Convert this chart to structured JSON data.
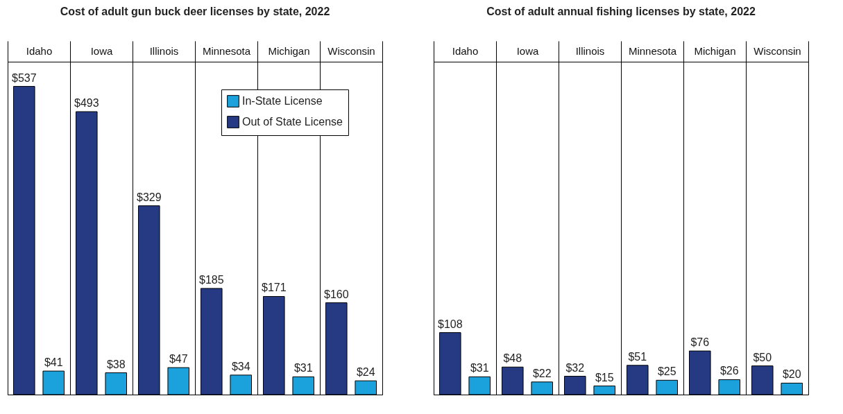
{
  "chart_data": [
    {
      "type": "bar",
      "title": "Cost of adult gun buck deer licenses by state, 2022",
      "categories": [
        "Idaho",
        "Iowa",
        "Illinois",
        "Minnesota",
        "Michigan",
        "Wisconsin"
      ],
      "ylim": [
        0,
        580
      ],
      "legend": "top right",
      "series": [
        {
          "name": "Out of State License",
          "color": "#253a83",
          "values": [
            537,
            493,
            329,
            185,
            171,
            160
          ],
          "value_labels": [
            "$537",
            "$493",
            "$329",
            "$185",
            "$171",
            "$160"
          ]
        },
        {
          "name": "In-State License",
          "color": "#1ba1dc",
          "values": [
            41,
            38,
            47,
            34,
            31,
            24
          ],
          "value_labels": [
            "$41",
            "$38",
            "$47",
            "$34",
            "$31",
            "$24"
          ]
        }
      ]
    },
    {
      "type": "bar",
      "title": "Cost of adult annual fishing licenses by state, 2022",
      "categories": [
        "Idaho",
        "Iowa",
        "Illinois",
        "Minnesota",
        "Michigan",
        "Wisconsin"
      ],
      "ylim": [
        0,
        580
      ],
      "legend": false,
      "series": [
        {
          "color": "#253a83",
          "values": [
            108,
            48,
            32,
            51,
            76,
            50
          ],
          "value_labels": [
            "$108",
            "$48",
            "$32",
            "$51",
            "$76",
            "$50"
          ]
        },
        {
          "color": "#1ba1dc",
          "values": [
            31,
            22,
            15,
            25,
            26,
            20
          ],
          "value_labels": [
            "$31",
            "$22",
            "$15",
            "$25",
            "$26",
            "$20"
          ]
        }
      ]
    }
  ]
}
